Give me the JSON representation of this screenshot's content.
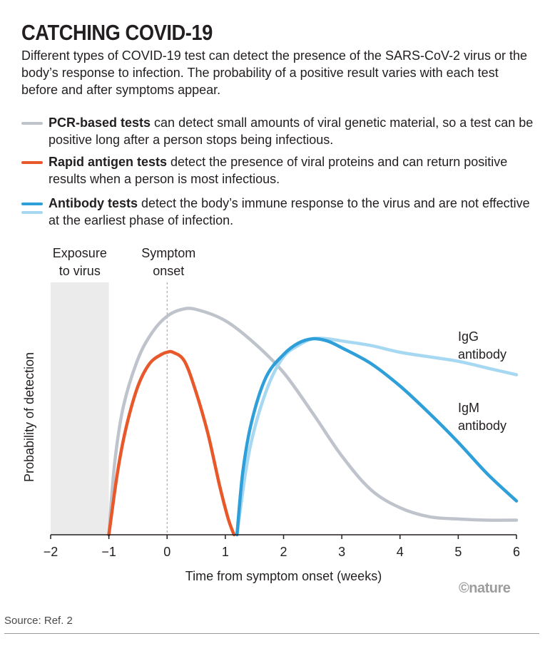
{
  "header": {
    "title": "CATCHING COVID-19",
    "intro": "Different types of COVID-19 test can detect the presence of the SARS-CoV-2 virus or the body’s response to infection. The probability of a positive result varies with each test before and after symptoms appear."
  },
  "legend": [
    {
      "bold": "PCR-based tests",
      "text": " can detect small amounts of viral genetic material, so a test can be positive long after a person stops being infectious.",
      "colors": [
        "#bfc4cc"
      ]
    },
    {
      "bold": "Rapid antigen tests",
      "text": " detect the presence of viral proteins and can return positive results when a person is most infectious.",
      "colors": [
        "#e8582a"
      ]
    },
    {
      "bold": "Antibody tests",
      "text": " detect the body’s immune response to the virus and are not effective at the earliest phase of infection.",
      "colors": [
        "#2e9fd9",
        "#a6d8f2"
      ]
    }
  ],
  "chart_data": {
    "type": "line",
    "xlabel": "Time from symptom onset (weeks)",
    "ylabel": "Probability of detection",
    "xlim": [
      -2,
      6
    ],
    "ylim": [
      0,
      1
    ],
    "xticks": [
      "−2",
      "−1",
      "0",
      "1",
      "2",
      "3",
      "4",
      "5",
      "6"
    ],
    "shaded_region": {
      "x": [
        -2,
        -1
      ],
      "label_line1": "Exposure",
      "label_line2": "to virus"
    },
    "marker_line": {
      "x": 0,
      "label_line1": "Symptom",
      "label_line2": "onset"
    },
    "series": [
      {
        "name": "PCR-based tests",
        "color": "#bfc4cc",
        "x": [
          -1,
          -0.9,
          -0.75,
          -0.5,
          -0.25,
          0,
          0.25,
          0.5,
          1,
          1.5,
          2,
          2.5,
          3,
          3.5,
          4,
          4.5,
          5,
          5.5,
          6
        ],
        "y": [
          0,
          0.32,
          0.57,
          0.78,
          0.9,
          0.97,
          1.0,
          1.0,
          0.95,
          0.85,
          0.72,
          0.54,
          0.35,
          0.2,
          0.12,
          0.08,
          0.07,
          0.065,
          0.065
        ]
      },
      {
        "name": "Rapid antigen tests",
        "color": "#e8582a",
        "x": [
          -1,
          -0.85,
          -0.7,
          -0.5,
          -0.3,
          -0.1,
          0,
          0.1,
          0.3,
          0.5,
          0.7,
          0.9,
          1.05,
          1.15
        ],
        "y": [
          0,
          0.28,
          0.48,
          0.66,
          0.76,
          0.8,
          0.81,
          0.81,
          0.77,
          0.63,
          0.45,
          0.22,
          0.07,
          0
        ]
      },
      {
        "name": "IgM antibody",
        "color": "#2e9fd9",
        "x": [
          1.2,
          1.3,
          1.45,
          1.7,
          2,
          2.25,
          2.5,
          2.75,
          3,
          3.5,
          4,
          4.5,
          5,
          5.5,
          6
        ],
        "y": [
          0,
          0.28,
          0.5,
          0.7,
          0.8,
          0.85,
          0.87,
          0.86,
          0.83,
          0.76,
          0.66,
          0.54,
          0.41,
          0.27,
          0.15
        ]
      },
      {
        "name": "IgG antibody",
        "color": "#a6d8f2",
        "x": [
          1.2,
          1.35,
          1.5,
          1.75,
          2,
          2.25,
          2.5,
          2.75,
          3,
          3.5,
          4,
          4.5,
          5,
          5.5,
          6
        ],
        "y": [
          0,
          0.28,
          0.47,
          0.67,
          0.79,
          0.84,
          0.87,
          0.87,
          0.86,
          0.84,
          0.81,
          0.79,
          0.77,
          0.74,
          0.71
        ]
      }
    ],
    "annotations": [
      {
        "line1": "IgG",
        "line2": "antibody"
      },
      {
        "line1": "IgM",
        "line2": "antibody"
      }
    ]
  },
  "footer": {
    "credit": "©nature",
    "source": "Source: Ref. 2"
  }
}
